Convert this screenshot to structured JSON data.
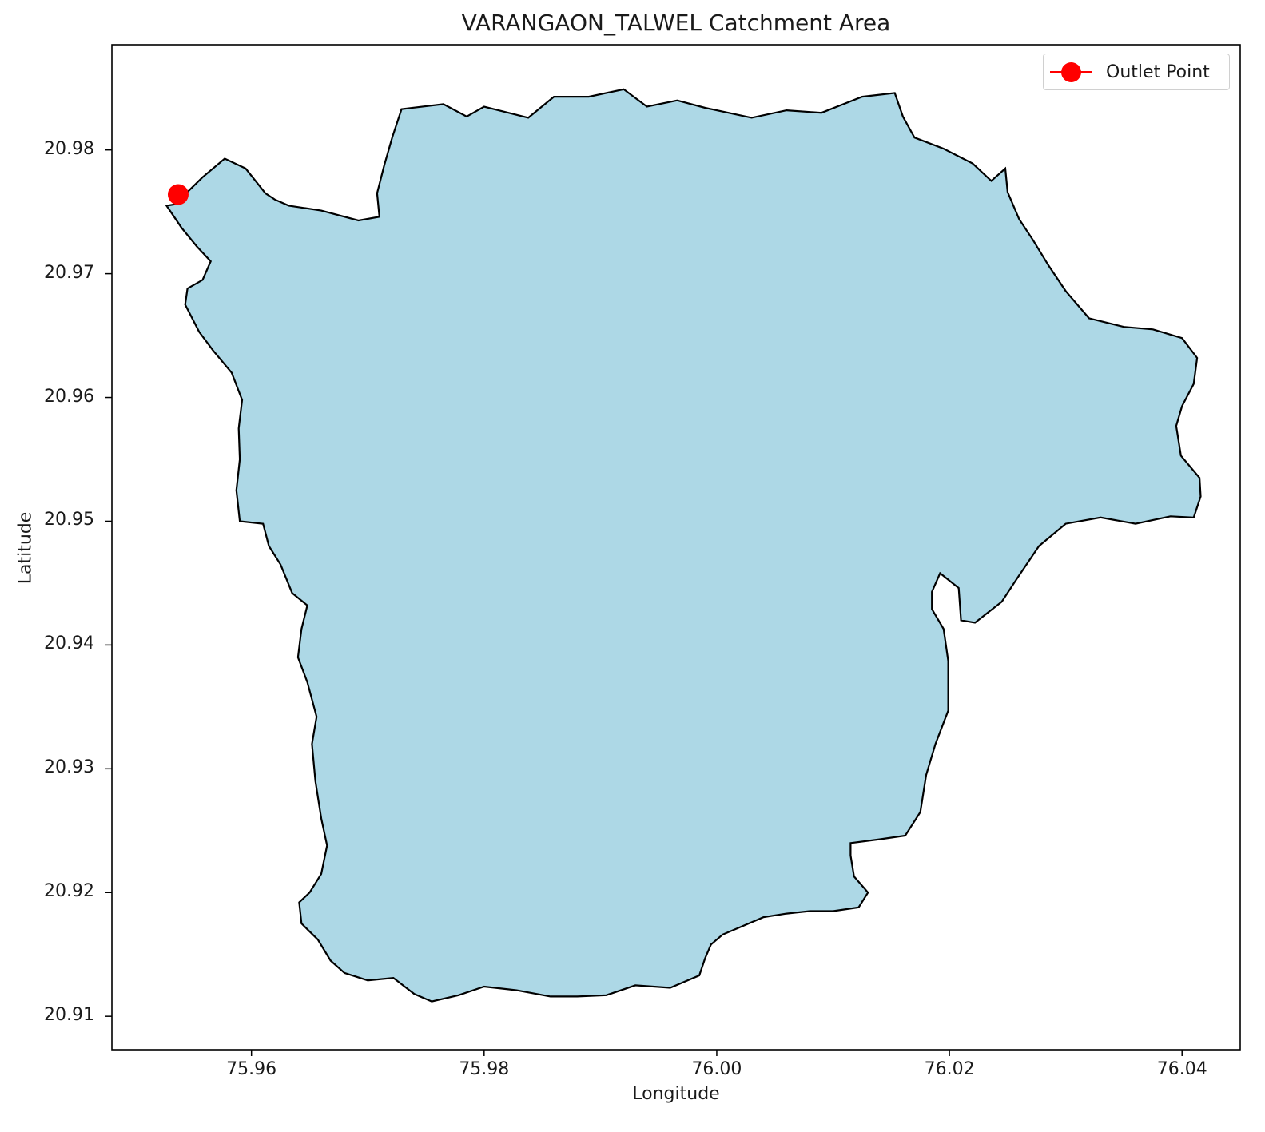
{
  "chart_data": {
    "type": "map",
    "title": "VARANGAON_TALWEL Catchment Area",
    "xlabel": "Longitude",
    "ylabel": "Latitude",
    "xlim": [
      75.948,
      76.045
    ],
    "ylim": [
      20.9073,
      20.9885
    ],
    "xticks": [
      "75.96",
      "75.98",
      "76.00",
      "76.02",
      "76.04"
    ],
    "xtick_values": [
      75.96,
      75.98,
      76.0,
      76.02,
      76.04
    ],
    "yticks": [
      "20.91",
      "20.92",
      "20.93",
      "20.94",
      "20.95",
      "20.96",
      "20.97",
      "20.98"
    ],
    "ytick_values": [
      20.91,
      20.92,
      20.93,
      20.94,
      20.95,
      20.96,
      20.97,
      20.98
    ],
    "catchment": {
      "fill": "#add8e6",
      "edge": "#000000",
      "boundary": [
        [
          75.9534,
          20.9756
        ],
        [
          75.9558,
          20.9778
        ],
        [
          75.9577,
          20.9793
        ],
        [
          75.9595,
          20.9785
        ],
        [
          75.9612,
          20.9765
        ],
        [
          75.962,
          20.976
        ],
        [
          75.9632,
          20.9755
        ],
        [
          75.966,
          20.9751
        ],
        [
          75.9692,
          20.9743
        ],
        [
          75.971,
          20.9746
        ],
        [
          75.9708,
          20.9765
        ],
        [
          75.9714,
          20.9787
        ],
        [
          75.9721,
          20.981
        ],
        [
          75.9729,
          20.9833
        ],
        [
          75.9765,
          20.9837
        ],
        [
          75.9785,
          20.9827
        ],
        [
          75.98,
          20.9835
        ],
        [
          75.9838,
          20.9826
        ],
        [
          75.986,
          20.9843
        ],
        [
          75.989,
          20.9843
        ],
        [
          75.992,
          20.9849
        ],
        [
          75.994,
          20.9835
        ],
        [
          75.9966,
          20.984
        ],
        [
          75.999,
          20.9834
        ],
        [
          76.003,
          20.9826
        ],
        [
          76.006,
          20.9832
        ],
        [
          76.009,
          20.983
        ],
        [
          76.0125,
          20.9843
        ],
        [
          76.0153,
          20.9846
        ],
        [
          76.016,
          20.9827
        ],
        [
          76.017,
          20.981
        ],
        [
          76.0195,
          20.9801
        ],
        [
          76.022,
          20.9789
        ],
        [
          76.0236,
          20.9775
        ],
        [
          76.0248,
          20.9785
        ],
        [
          76.025,
          20.9766
        ],
        [
          76.026,
          20.9744
        ],
        [
          76.0272,
          20.9727
        ],
        [
          76.0285,
          20.9707
        ],
        [
          76.03,
          20.9686
        ],
        [
          76.032,
          20.9664
        ],
        [
          76.035,
          20.9657
        ],
        [
          76.0375,
          20.9655
        ],
        [
          76.04,
          20.9648
        ],
        [
          76.0413,
          20.9632
        ],
        [
          76.041,
          20.9611
        ],
        [
          76.04,
          20.9593
        ],
        [
          76.0395,
          20.9577
        ],
        [
          76.0399,
          20.9553
        ],
        [
          76.0415,
          20.9535
        ],
        [
          76.0416,
          20.952
        ],
        [
          76.041,
          20.9503
        ],
        [
          76.039,
          20.9504
        ],
        [
          76.036,
          20.9498
        ],
        [
          76.033,
          20.9503
        ],
        [
          76.03,
          20.9498
        ],
        [
          76.0277,
          20.948
        ],
        [
          76.0259,
          20.9455
        ],
        [
          76.0245,
          20.9435
        ],
        [
          76.0222,
          20.9418
        ],
        [
          76.021,
          20.942
        ],
        [
          76.0208,
          20.9446
        ],
        [
          76.0192,
          20.9458
        ],
        [
          76.0185,
          20.9443
        ],
        [
          76.0185,
          20.9429
        ],
        [
          76.0195,
          20.9413
        ],
        [
          76.0199,
          20.9387
        ],
        [
          76.0199,
          20.9347
        ],
        [
          76.0188,
          20.932
        ],
        [
          76.018,
          20.9295
        ],
        [
          76.0175,
          20.9265
        ],
        [
          76.0162,
          20.9246
        ],
        [
          76.014,
          20.9243
        ],
        [
          76.0115,
          20.924
        ],
        [
          76.0115,
          20.923
        ],
        [
          76.0118,
          20.9213
        ],
        [
          76.013,
          20.92
        ],
        [
          76.0122,
          20.9188
        ],
        [
          76.01,
          20.9185
        ],
        [
          76.008,
          20.9185
        ],
        [
          76.006,
          20.9183
        ],
        [
          76.004,
          20.918
        ],
        [
          76.002,
          20.9172
        ],
        [
          76.0005,
          20.9166
        ],
        [
          75.9995,
          20.9158
        ],
        [
          75.999,
          20.9147
        ],
        [
          75.9985,
          20.9133
        ],
        [
          75.996,
          20.9123
        ],
        [
          75.993,
          20.9125
        ],
        [
          75.9905,
          20.9117
        ],
        [
          75.988,
          20.9116
        ],
        [
          75.9857,
          20.9116
        ],
        [
          75.9828,
          20.9121
        ],
        [
          75.98,
          20.9124
        ],
        [
          75.9778,
          20.9117
        ],
        [
          75.9755,
          20.9112
        ],
        [
          75.974,
          20.9118
        ],
        [
          75.9722,
          20.9131
        ],
        [
          75.97,
          20.9129
        ],
        [
          75.968,
          20.9135
        ],
        [
          75.9668,
          20.9145
        ],
        [
          75.9657,
          20.9162
        ],
        [
          75.9643,
          20.9175
        ],
        [
          75.9641,
          20.9192
        ],
        [
          75.965,
          20.92
        ],
        [
          75.966,
          20.9215
        ],
        [
          75.9665,
          20.9238
        ],
        [
          75.966,
          20.926
        ],
        [
          75.9655,
          20.929
        ],
        [
          75.9652,
          20.932
        ],
        [
          75.9656,
          20.9342
        ],
        [
          75.9648,
          20.937
        ],
        [
          75.964,
          20.939
        ],
        [
          75.9643,
          20.9413
        ],
        [
          75.9648,
          20.9432
        ],
        [
          75.9635,
          20.9442
        ],
        [
          75.9625,
          20.9465
        ],
        [
          75.9615,
          20.948
        ],
        [
          75.961,
          20.9498
        ],
        [
          75.959,
          20.95
        ],
        [
          75.9587,
          20.9525
        ],
        [
          75.959,
          20.955
        ],
        [
          75.9589,
          20.9575
        ],
        [
          75.9592,
          20.9598
        ],
        [
          75.9583,
          20.962
        ],
        [
          75.9567,
          20.9638
        ],
        [
          75.9555,
          20.9653
        ],
        [
          75.9543,
          20.9675
        ],
        [
          75.9545,
          20.9688
        ],
        [
          75.9558,
          20.9695
        ],
        [
          75.9565,
          20.971
        ],
        [
          75.9553,
          20.9722
        ],
        [
          75.954,
          20.9737
        ],
        [
          75.9527,
          20.9755
        ],
        [
          75.9534,
          20.9756
        ]
      ]
    },
    "legend": {
      "position": "upper right",
      "entries": [
        {
          "label": "Outlet Point",
          "color": "#ff0000",
          "marker": "circle"
        }
      ]
    },
    "outlet_point": {
      "name": "Outlet Point",
      "lon": 75.9537,
      "lat": 20.9764,
      "color": "#ff0000"
    }
  }
}
